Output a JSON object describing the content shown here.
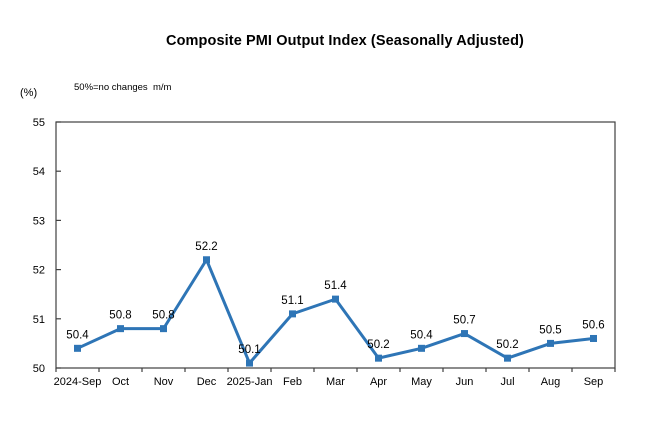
{
  "chart": {
    "title": "Composite PMI Output Index (Seasonally Adjusted)",
    "y_unit_label": "(%)",
    "annotation": "50%=no changes  m/m"
  },
  "chart_data": {
    "type": "line",
    "title": "Composite PMI Output Index (Seasonally Adjusted)",
    "categories": [
      "2024-Sep",
      "Oct",
      "Nov",
      "Dec",
      "2025-Jan",
      "Feb",
      "Mar",
      "Apr",
      "May",
      "Jun",
      "Jul",
      "Aug",
      "Sep"
    ],
    "values": [
      50.4,
      50.8,
      50.8,
      52.2,
      50.1,
      51.1,
      51.4,
      50.2,
      50.4,
      50.7,
      50.2,
      50.5,
      50.6
    ],
    "xlabel": "",
    "ylabel": "(%)",
    "ylim": [
      50,
      55
    ],
    "y_ticks": [
      50,
      51,
      52,
      53,
      54,
      55
    ],
    "grid": false,
    "legend": false,
    "data_labels": true,
    "marker": "square",
    "line_color": "#2E75B6",
    "axis_color": "#404040"
  }
}
